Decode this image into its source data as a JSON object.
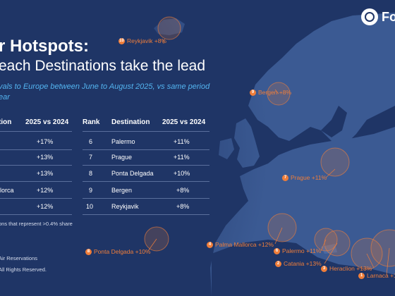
{
  "brand": {
    "name": "Fo"
  },
  "title_line1": "r Hotspots:",
  "title_line2": "each Destinations take the lead",
  "subtitle": "vals to Europe between June to August 2025, vs same period ear",
  "table_left": {
    "headers": [
      "tion",
      "2025 vs 2024"
    ],
    "rows": [
      {
        "destination": "",
        "change": "+17%"
      },
      {
        "destination": "",
        "change": "+13%"
      },
      {
        "destination": "",
        "change": "+13%"
      },
      {
        "destination": "llorca",
        "change": "+12%"
      },
      {
        "destination": "",
        "change": "+12%"
      }
    ]
  },
  "table_right": {
    "headers": [
      "Rank",
      "Destination",
      "2025 vs 2024"
    ],
    "rows": [
      {
        "rank": "6",
        "destination": "Palermo",
        "change": "+11%"
      },
      {
        "rank": "7",
        "destination": "Prague",
        "change": "+11%"
      },
      {
        "rank": "8",
        "destination": "Ponta Delgada",
        "change": "+10%"
      },
      {
        "rank": "9",
        "destination": "Bergen",
        "change": "+8%"
      },
      {
        "rank": "10",
        "destination": "Reykjavik",
        "change": "+8%"
      }
    ]
  },
  "footnote1": "ons that represent >0.4% share",
  "footnote2": "Air Reservations",
  "footnote3": "All Rights Reserved.",
  "map_markers": [
    {
      "num": "10",
      "label": "Reykjavik +8%"
    },
    {
      "num": "9",
      "label": "Bergen +8%"
    },
    {
      "num": "7",
      "label": "Prague +11%"
    },
    {
      "num": "8",
      "label": "Ponta Delgada +10%"
    },
    {
      "num": "4",
      "label": "Palma Mallorca +12%"
    },
    {
      "num": "6",
      "label": "Palermo +11%"
    },
    {
      "num": "2",
      "label": "Catania +13%"
    },
    {
      "num": "3",
      "label": "Heraclion +13%"
    },
    {
      "num": "1",
      "label": "Larnaca +1"
    }
  ],
  "colors": {
    "background": "#1f3566",
    "land": "#3b5a93",
    "accent": "#f07e3a",
    "subtitle": "#53b4f0"
  }
}
